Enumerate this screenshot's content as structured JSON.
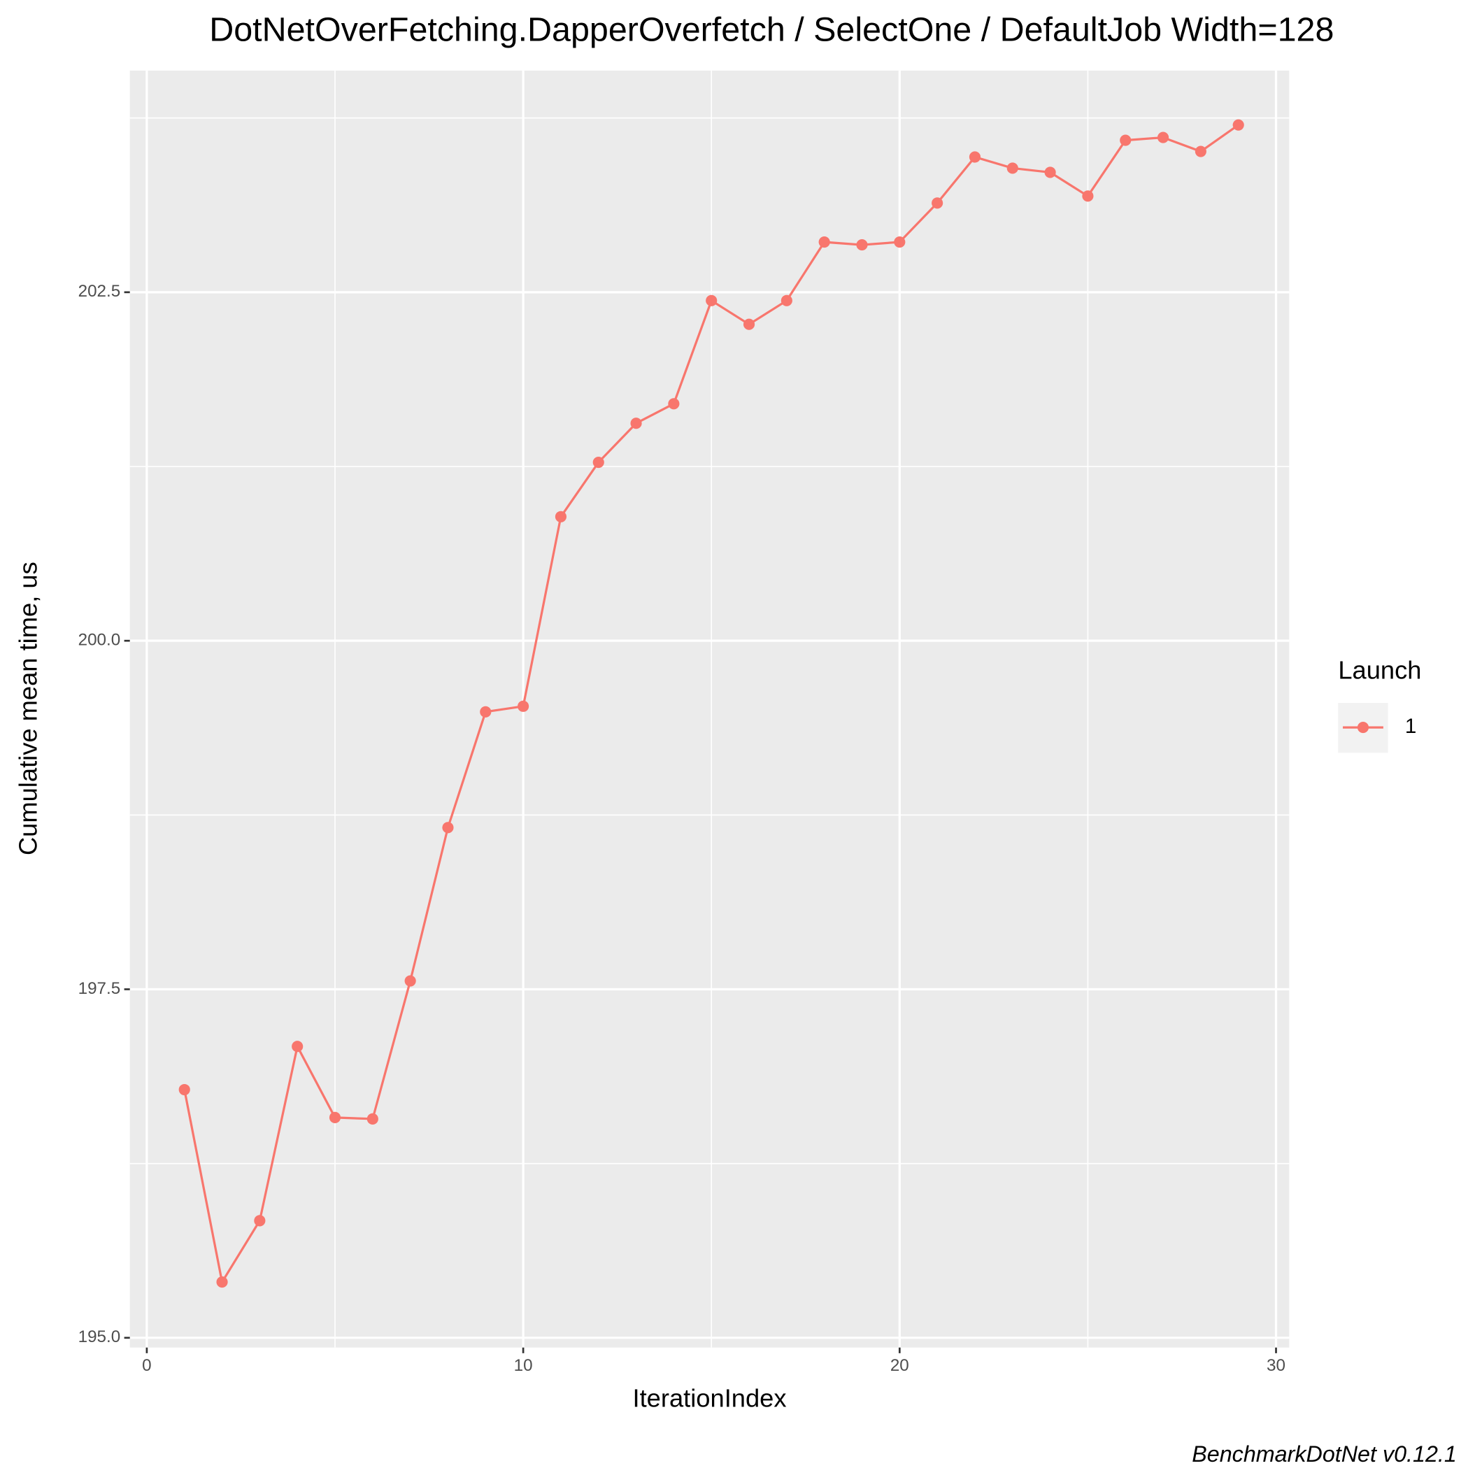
{
  "chart_data": {
    "type": "line",
    "title": "DotNetOverFetching.DapperOverfetch / SelectOne / DefaultJob Width=128",
    "x_label": "IterationIndex",
    "y_label": "Cumulative mean time, us",
    "caption": "BenchmarkDotNet v0.12.1",
    "legend_title": "Launch",
    "legend_position": "right",
    "grid": true,
    "x": [
      1,
      2,
      3,
      4,
      5,
      6,
      7,
      8,
      9,
      10,
      11,
      12,
      13,
      14,
      15,
      16,
      17,
      18,
      19,
      20,
      21,
      22,
      23,
      24,
      25,
      26,
      27,
      28,
      29
    ],
    "series": [
      {
        "name": "1",
        "color": "#F8766D",
        "values": [
          196.78,
          195.4,
          195.84,
          197.09,
          196.58,
          196.57,
          197.56,
          198.66,
          199.49,
          199.53,
          200.89,
          201.28,
          201.56,
          201.7,
          202.44,
          202.27,
          202.44,
          202.86,
          202.84,
          202.86,
          203.14,
          203.47,
          203.39,
          203.36,
          203.19,
          203.59,
          203.61,
          203.51,
          203.7
        ]
      }
    ],
    "xlim": [
      -0.45,
      30.35
    ],
    "ylim": [
      194.93,
      204.09
    ],
    "xticks": [
      0,
      10,
      20,
      30
    ],
    "yticks": [
      {
        "value": 195,
        "label": "195.0"
      },
      197.5,
      {
        "value": 200,
        "label": "200.0"
      },
      202.5
    ],
    "xminor": [
      5,
      15,
      25
    ],
    "yminor": [
      196.25,
      198.75,
      201.25,
      203.75
    ]
  }
}
